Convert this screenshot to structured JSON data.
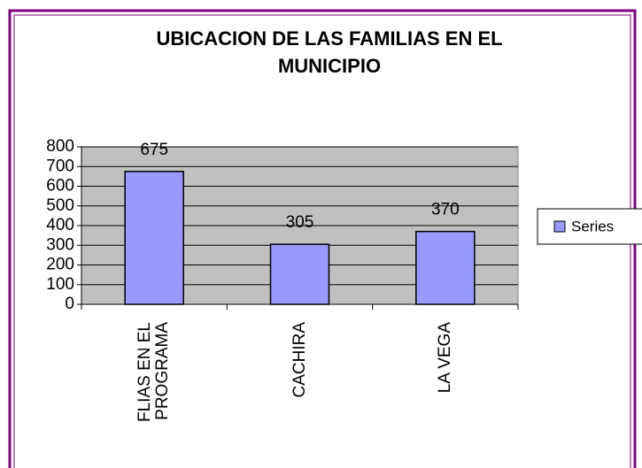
{
  "chart_data": {
    "type": "bar",
    "title": [
      "UBICACION DE LAS FAMILIAS  EN EL",
      "MUNICIPIO"
    ],
    "categories": [
      "FLIAS EN EL PROGRAMA",
      "CACHIRA",
      "LA VEGA"
    ],
    "series": [
      {
        "name": "Series",
        "color": "#9999ff",
        "values": [
          675,
          305,
          370
        ]
      }
    ],
    "ylim": [
      0,
      800
    ],
    "yticks": [
      0,
      100,
      200,
      300,
      400,
      500,
      600,
      700,
      800
    ],
    "grid": true,
    "legend": "right"
  }
}
